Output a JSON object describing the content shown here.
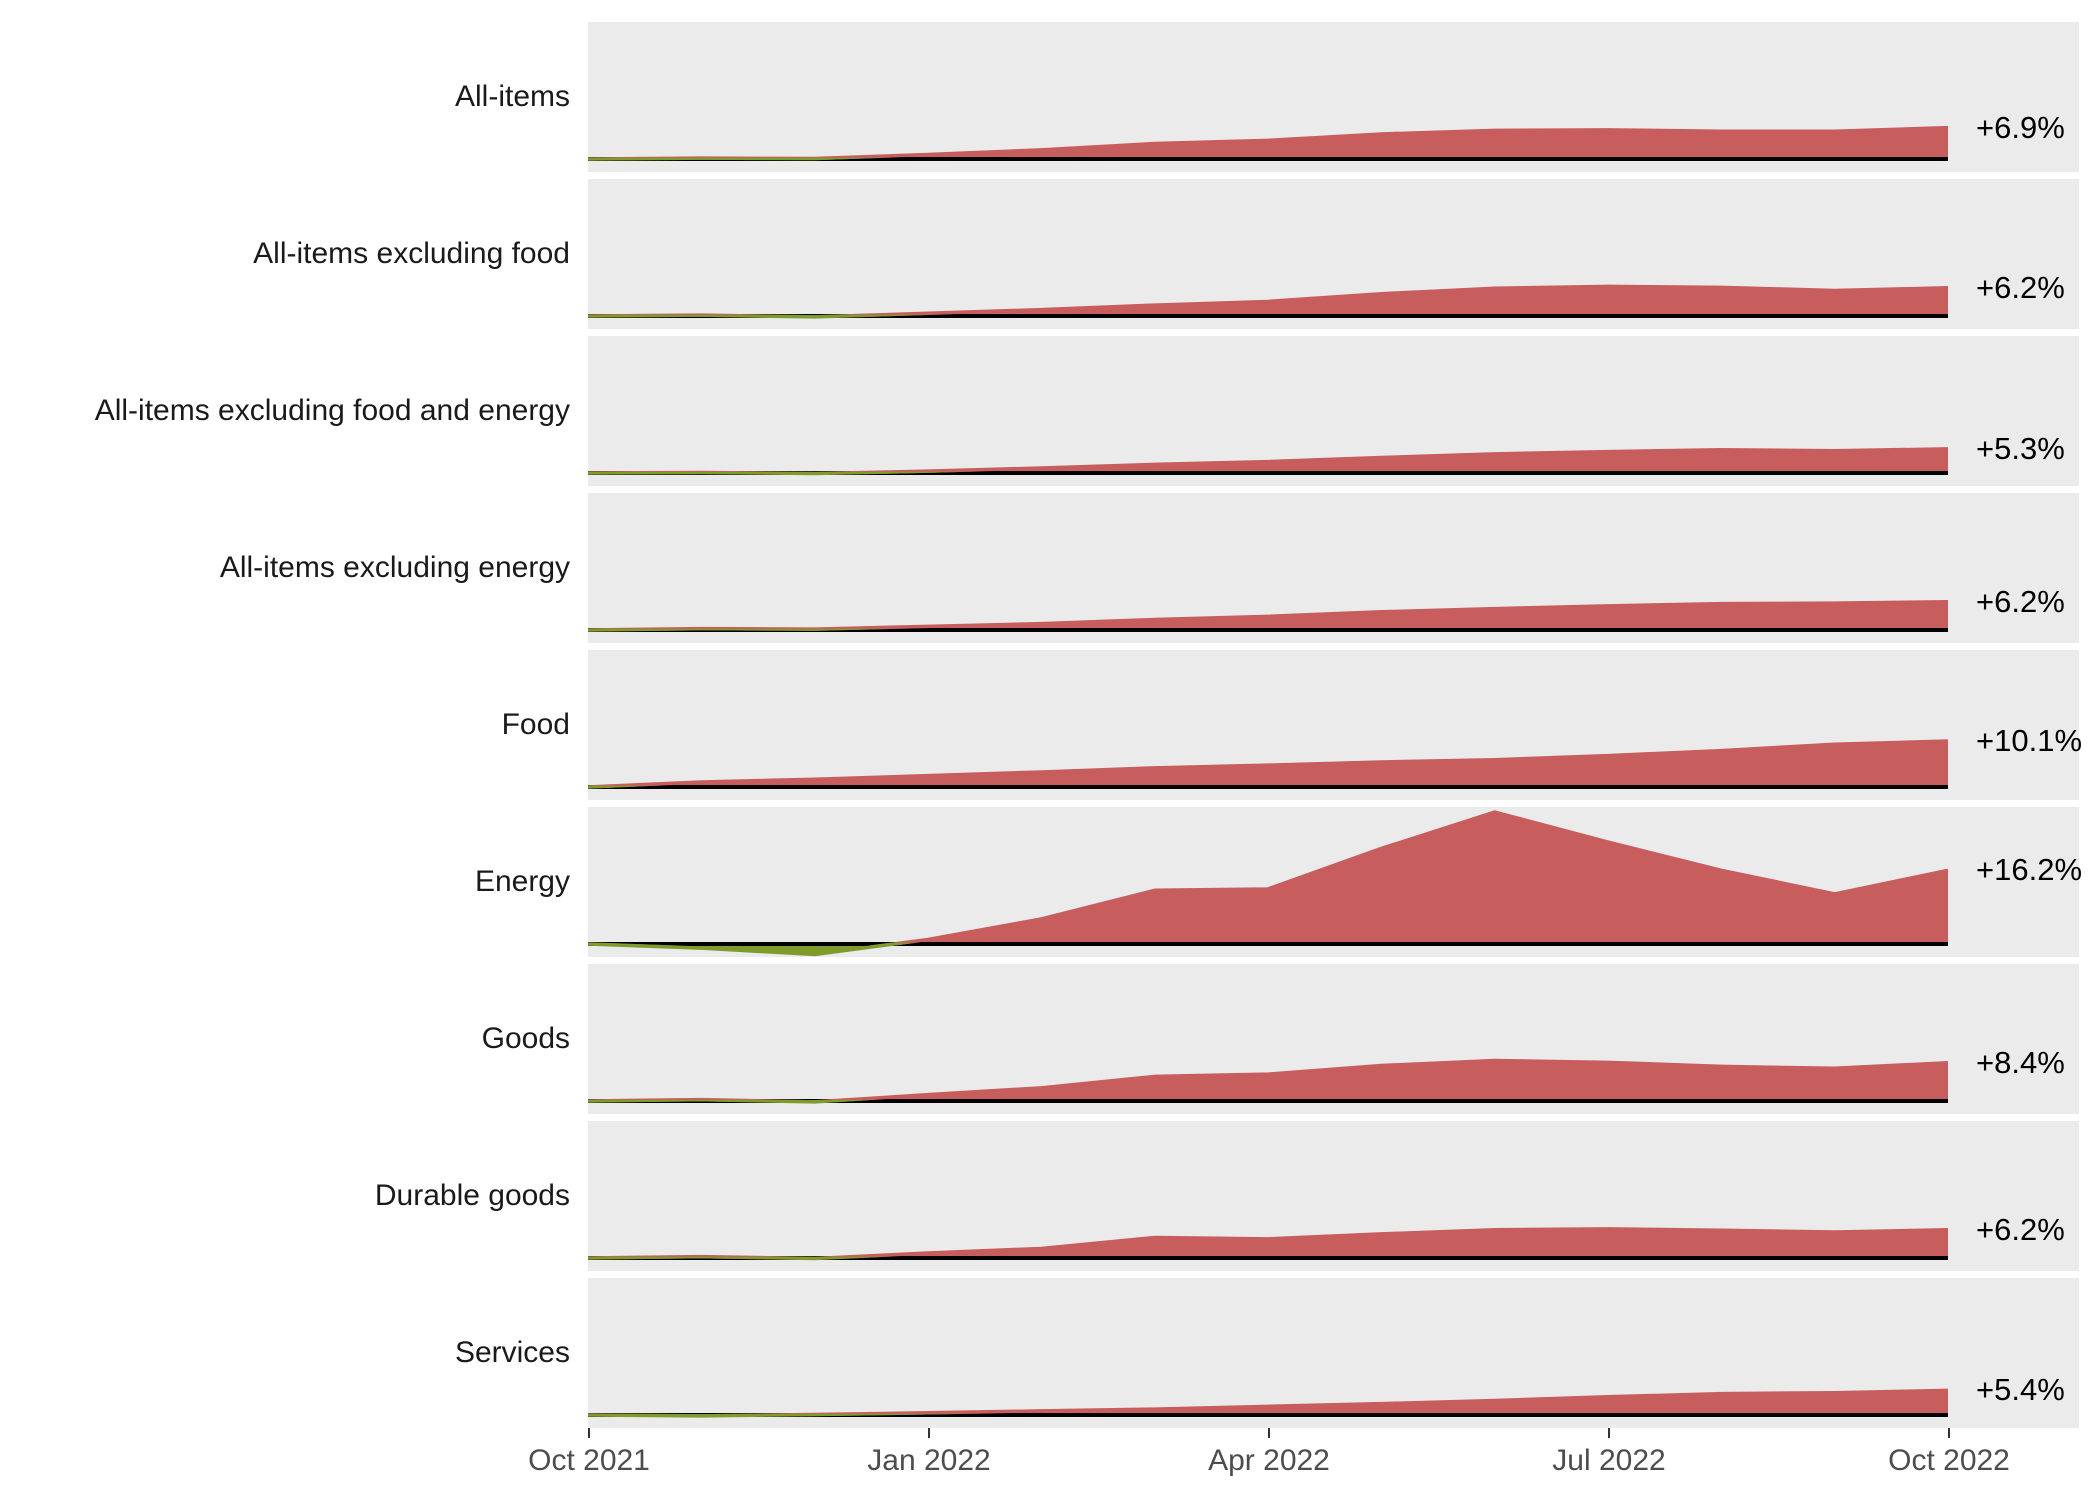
{
  "chart_data": {
    "type": "area",
    "title": "",
    "x": [
      "Oct 2021",
      "Nov 2021",
      "Dec 2021",
      "Jan 2022",
      "Feb 2022",
      "Mar 2022",
      "Apr 2022",
      "May 2022",
      "Jun 2022",
      "Jul 2022",
      "Aug 2022",
      "Sep 2022",
      "Oct 2022"
    ],
    "x_axis_ticks": [
      {
        "label": "Oct 2021",
        "month_index": 0
      },
      {
        "label": "Jan 2022",
        "month_index": 3
      },
      {
        "label": "Apr 2022",
        "month_index": 6
      },
      {
        "label": "Jul 2022",
        "month_index": 9
      },
      {
        "label": "Oct 2022",
        "month_index": 12
      }
    ],
    "y_unit": "percent change since Oct 2021",
    "y_scale_shared": true,
    "ylim": [
      -2.9,
      30.1
    ],
    "grid": false,
    "legend": "none",
    "series": [
      {
        "name": "All-items",
        "final_label": "+6.9%",
        "values": [
          0,
          0.2,
          0.1,
          1.0,
          2.0,
          3.4,
          4.1,
          5.5,
          6.3,
          6.4,
          6.1,
          6.1,
          6.9
        ]
      },
      {
        "name": "All-items excluding food",
        "final_label": "+6.2%",
        "values": [
          0,
          0.2,
          -0.2,
          0.6,
          1.4,
          2.4,
          3.2,
          4.9,
          6.1,
          6.5,
          6.3,
          5.6,
          6.2
        ]
      },
      {
        "name": "All-items excluding food and energy",
        "final_label": "+5.3%",
        "values": [
          0,
          0.1,
          -0.1,
          0.4,
          1.1,
          1.9,
          2.5,
          3.4,
          4.2,
          4.7,
          5.1,
          4.9,
          5.3
        ]
      },
      {
        "name": "All-items excluding energy",
        "final_label": "+6.2%",
        "values": [
          0,
          0.3,
          0.2,
          0.8,
          1.4,
          2.3,
          3.0,
          4.0,
          4.7,
          5.3,
          5.8,
          5.9,
          6.2
        ]
      },
      {
        "name": "Food",
        "final_label": "+10.1%",
        "values": [
          0,
          1.1,
          1.7,
          2.5,
          3.3,
          4.2,
          4.8,
          5.5,
          6.0,
          6.9,
          8.0,
          9.4,
          10.1
        ]
      },
      {
        "name": "Energy",
        "final_label": "+16.2%",
        "values": [
          0,
          -0.9,
          -2.3,
          1.0,
          5.5,
          11.8,
          12.1,
          21.0,
          29.0,
          22.4,
          16.2,
          11.0,
          16.2
        ]
      },
      {
        "name": "Goods",
        "final_label": "+8.4%",
        "values": [
          0,
          0.3,
          -0.2,
          1.4,
          2.9,
          5.4,
          5.9,
          7.8,
          8.9,
          8.5,
          7.6,
          7.2,
          8.4
        ]
      },
      {
        "name": "Durable goods",
        "final_label": "+6.2%",
        "values": [
          0,
          0.3,
          -0.1,
          1.1,
          2.1,
          4.5,
          4.2,
          5.3,
          6.2,
          6.4,
          6.1,
          5.7,
          6.2
        ]
      },
      {
        "name": "Services",
        "final_label": "+5.4%",
        "values": [
          0,
          -0.2,
          0.1,
          0.5,
          0.9,
          1.3,
          1.9,
          2.5,
          3.2,
          4.0,
          4.7,
          4.9,
          5.4
        ]
      }
    ],
    "colors": {
      "positive_fill": "#c85d5d",
      "negative_fill": "#7e9b2b",
      "panel_background": "#ebebeb",
      "baseline": "#000000",
      "row_label_text": "#1a1a1a",
      "value_label_text": "#000000",
      "axis_text": "#4d4d4d"
    }
  }
}
